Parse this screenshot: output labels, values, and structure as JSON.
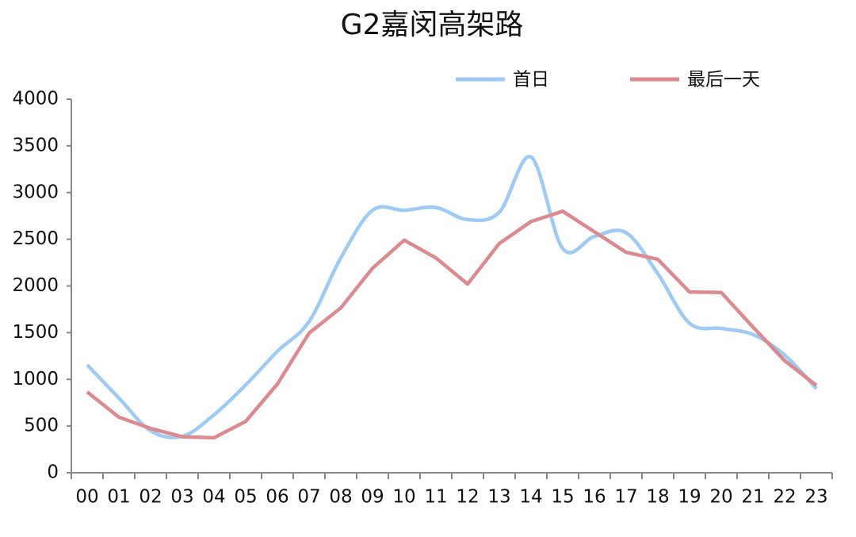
{
  "chart_data": {
    "type": "line",
    "title": "G2嘉闵高架路",
    "categories": [
      "00",
      "01",
      "02",
      "03",
      "04",
      "05",
      "06",
      "07",
      "08",
      "09",
      "10",
      "11",
      "12",
      "13",
      "14",
      "15",
      "16",
      "17",
      "18",
      "19",
      "20",
      "21",
      "22",
      "23"
    ],
    "series": [
      {
        "name": "首日",
        "color": "#9ecbf5",
        "smooth": true,
        "values": [
          1155,
          800,
          450,
          390,
          620,
          940,
          1300,
          1620,
          2300,
          2810,
          2810,
          2840,
          2710,
          2790,
          3380,
          2400,
          2530,
          2570,
          2130,
          1600,
          1545,
          1480,
          1260,
          900
        ]
      },
      {
        "name": "最后一天",
        "color": "#dc8a8f",
        "smooth": false,
        "values": [
          865,
          595,
          475,
          385,
          375,
          550,
          950,
          1495,
          1765,
          2190,
          2490,
          2300,
          2020,
          2455,
          2690,
          2800,
          2580,
          2360,
          2285,
          1935,
          1930,
          1560,
          1200,
          935
        ]
      }
    ],
    "ylim": [
      0,
      4000
    ],
    "yticks": [
      0,
      500,
      1000,
      1500,
      2000,
      2500,
      3000,
      3500,
      4000
    ],
    "legend": "top",
    "grid": false
  }
}
